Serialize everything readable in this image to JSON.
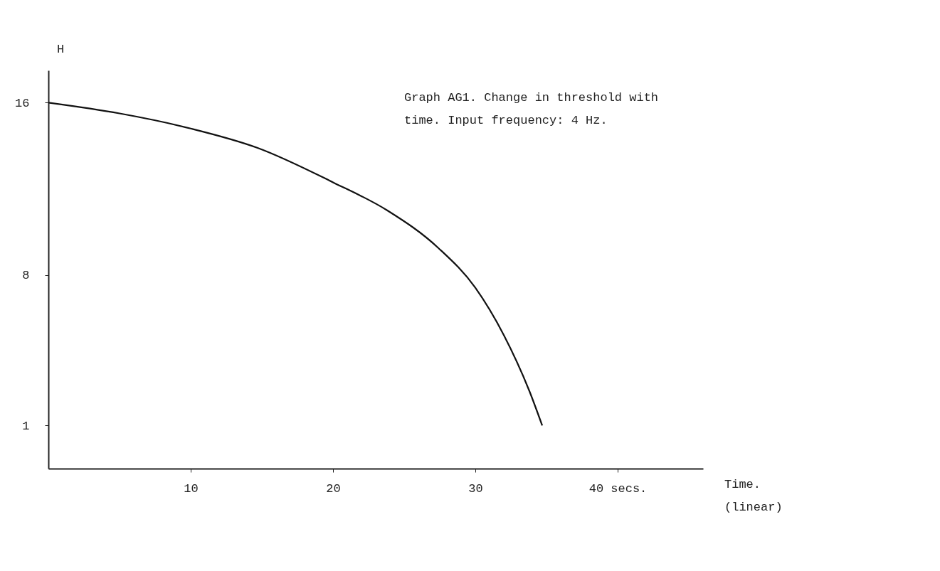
{
  "chart_data": {
    "type": "line",
    "ylabel": "H",
    "xlabel": "Time.\n(linear)",
    "annotations": [
      "Graph AG1.  Change in threshold with\ntime.  Input frequency: 4 Hz."
    ],
    "x": [
      0,
      5,
      10,
      14.7,
      20,
      23.8,
      27.4,
      30,
      32,
      33.8,
      34.7
    ],
    "series": [
      {
        "color": "#111111",
        "values": [
          16,
          15.5,
          14.8,
          13.9,
          12.3,
          11.0,
          9.25,
          7.4,
          5.2,
          2.6,
          1
        ]
      }
    ],
    "xlim": [
      0,
      46
    ],
    "xticks": [
      10,
      20,
      30,
      {
        "value": 40,
        "label": "40 secs."
      }
    ],
    "ylim": [
      -1,
      17.5
    ],
    "yticks": [
      1,
      8,
      16
    ],
    "grid": false,
    "marker": "none",
    "line_style": "solid"
  }
}
